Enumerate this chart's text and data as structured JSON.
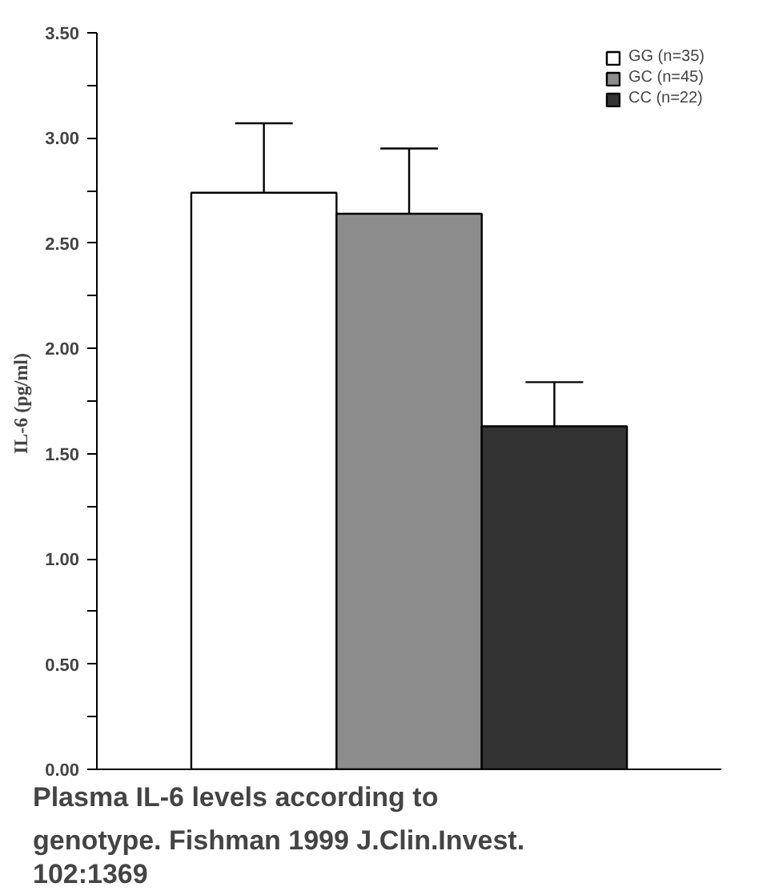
{
  "chart_data": {
    "type": "bar",
    "ylabel": "IL-6  (pg/ml)",
    "categories": [
      null
    ],
    "series": [
      {
        "name": "GG (n=35)",
        "color": "#ffffff",
        "values": [
          2.74
        ],
        "errors": [
          [
            2.74,
            3.07
          ]
        ]
      },
      {
        "name": "GC (n=45)",
        "color": "#8c8c8c",
        "values": [
          2.64
        ],
        "errors": [
          [
            2.64,
            2.95
          ]
        ]
      },
      {
        "name": "CC (n=22)",
        "color": "#333333",
        "values": [
          1.63
        ],
        "errors": [
          [
            1.63,
            1.84
          ]
        ]
      }
    ],
    "ylim": [
      0,
      3.5
    ],
    "yticks": [
      {
        "value": 0,
        "label": "0.00"
      },
      {
        "value": 0.25,
        "label": null
      },
      {
        "value": 0.5,
        "label": "0.50"
      },
      {
        "value": 0.75,
        "label": null
      },
      {
        "value": 1,
        "label": "1.00"
      },
      {
        "value": 1.25,
        "label": null
      },
      {
        "value": 1.5,
        "label": "1.50"
      },
      {
        "value": 1.75,
        "label": null
      },
      {
        "value": 2,
        "label": "2.00"
      },
      {
        "value": 2.25,
        "label": null
      },
      {
        "value": 2.5,
        "label": "2.50"
      },
      {
        "value": 2.75,
        "label": null
      },
      {
        "value": 3,
        "label": "3.00"
      },
      {
        "value": 3.25,
        "label": null
      },
      {
        "value": 3.5,
        "label": "3.50"
      }
    ],
    "grid": false,
    "legend": "top right",
    "annotations": [
      "Plasma IL-6 levels according to genotype.  Fishman 1999 J.Clin.Invest. 102:1369"
    ]
  }
}
